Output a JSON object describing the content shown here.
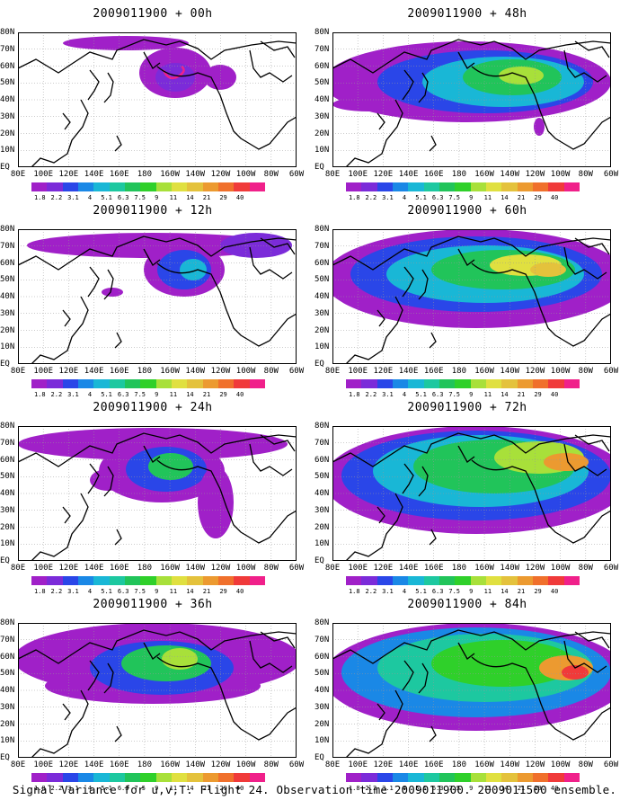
{
  "colorbar": {
    "colors": [
      "#a020c8",
      "#7b2bd9",
      "#2a46e8",
      "#1a88e6",
      "#19b7d6",
      "#1dc8a0",
      "#21c45a",
      "#2fd02a",
      "#a8e03a",
      "#e0e040",
      "#e4c23c",
      "#ec9a30",
      "#f0702c",
      "#f03a3a",
      "#f0208a"
    ],
    "labels": [
      "1.8",
      "2.2",
      "3.1",
      "4",
      "5.1",
      "6.3",
      "7.5",
      "9",
      "11",
      "14",
      "21",
      "29",
      "40"
    ]
  },
  "lat_labels": [
    "80N",
    "70N",
    "60N",
    "50N",
    "40N",
    "30N",
    "20N",
    "10N",
    "EQ"
  ],
  "lon_labels": [
    "80E",
    "100E",
    "120E",
    "140E",
    "160E",
    "180",
    "160W",
    "140W",
    "120W",
    "100W",
    "80W",
    "60W"
  ],
  "panels": [
    {
      "title": "2009011900 + 00h"
    },
    {
      "title": "2009011900 + 48h"
    },
    {
      "title": "2009011900 + 12h"
    },
    {
      "title": "2009011900 + 60h"
    },
    {
      "title": "2009011900 + 24h"
    },
    {
      "title": "2009011900 + 72h"
    },
    {
      "title": "2009011900 + 36h"
    },
    {
      "title": "2009011900 + 84h"
    }
  ],
  "footer": "Signal Variance for u,v,T. Flight 24. Observation time 2009011900. 2009011500 ensemble."
}
